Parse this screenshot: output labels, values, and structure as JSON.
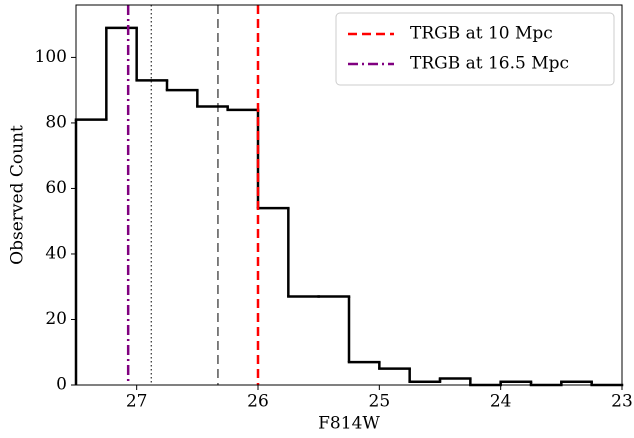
{
  "chart_data": {
    "type": "histogram",
    "x_label": "F814W",
    "y_label": "Observed Count",
    "bins": [
      23.0,
      23.25,
      23.5,
      23.75,
      24.0,
      24.25,
      24.5,
      24.75,
      25.0,
      25.25,
      25.5,
      25.75,
      26.0,
      26.25,
      26.5,
      26.75,
      27.0,
      27.25,
      27.5
    ],
    "values": [
      0,
      1,
      0,
      1,
      0,
      2,
      1,
      5,
      7,
      27,
      27,
      54,
      84,
      85,
      90,
      93,
      109,
      81
    ],
    "color": "#000000",
    "xlim": [
      27.5,
      23
    ],
    "xticks": [
      27,
      26,
      25,
      24,
      23
    ],
    "ylim": [
      0,
      116
    ],
    "yticks": [
      0,
      20,
      40,
      60,
      80,
      100
    ],
    "legend": "upper right",
    "vlines": [
      {
        "name": "TRGB at 10 Mpc",
        "x": 26.0,
        "color": "#ff0000",
        "style": "dashed"
      },
      {
        "name": "TRGB at 16.5 Mpc",
        "x": 27.07,
        "color": "#800080",
        "style": "dashdot"
      },
      {
        "x": 26.88,
        "color": "#000000",
        "style": "dotted"
      },
      {
        "x": 26.33,
        "color": "#000000",
        "style": "dashed"
      }
    ]
  }
}
